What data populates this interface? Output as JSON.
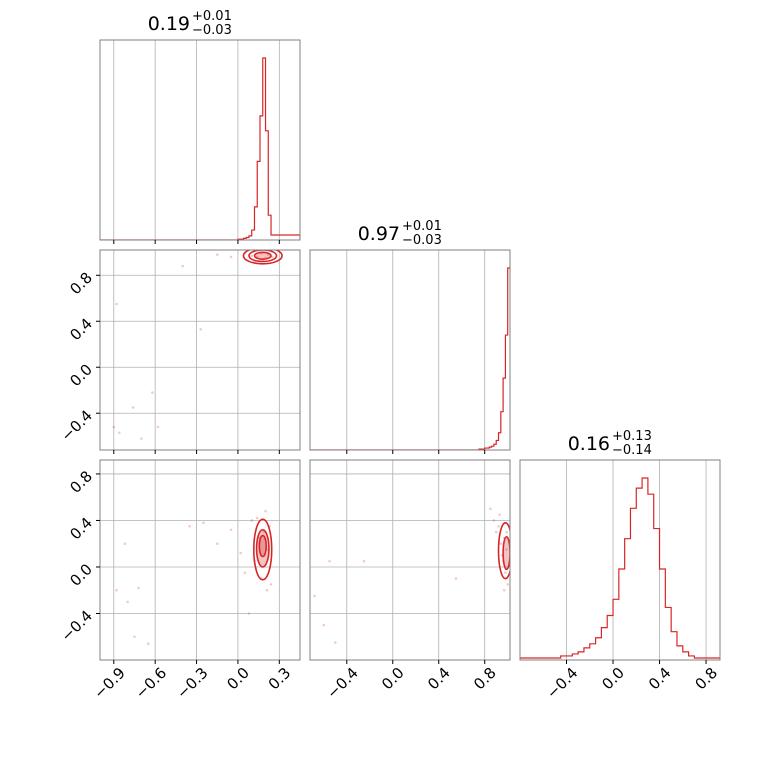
{
  "chart_data": {
    "type": "corner",
    "color": "#d62728",
    "grid": true,
    "parameters": [
      {
        "range": [
          -1.0,
          0.45
        ],
        "ticks": [
          -0.9,
          -0.6,
          -0.3,
          0.0,
          0.3
        ],
        "tick_labels": [
          "−0.9",
          "−0.6",
          "−0.3",
          "0.0",
          "0.3"
        ]
      },
      {
        "range": [
          -0.72,
          1.02
        ],
        "ticks": [
          -0.4,
          0.0,
          0.4,
          0.8
        ],
        "tick_labels": [
          "−0.4",
          "0.0",
          "0.4",
          "0.8"
        ]
      },
      {
        "range": [
          -0.8,
          0.92
        ],
        "ticks": [
          -0.4,
          0.0,
          0.4,
          0.8
        ],
        "tick_labels": [
          "−0.4",
          "0.0",
          "0.4",
          "0.8"
        ]
      }
    ],
    "titles": [
      {
        "median": "0.19",
        "upper": "+0.01",
        "lower": "−0.03"
      },
      {
        "median": "0.97",
        "upper": "+0.01",
        "lower": "−0.03"
      },
      {
        "median": "0.16",
        "upper": "+0.13",
        "lower": "−0.14"
      }
    ],
    "histograms": [
      {
        "x": [
          -1.0,
          0.0,
          0.02,
          0.04,
          0.06,
          0.08,
          0.1,
          0.12,
          0.14,
          0.16,
          0.18,
          0.2,
          0.22,
          0.24,
          0.45
        ],
        "values": [
          0,
          1,
          1,
          2,
          3,
          5,
          12,
          40,
          95,
          150,
          220,
          132,
          30,
          6,
          0
        ]
      },
      {
        "x": [
          -0.72,
          0.75,
          0.78,
          0.8,
          0.82,
          0.84,
          0.86,
          0.88,
          0.9,
          0.92,
          0.94,
          0.96,
          0.98,
          1.0
        ],
        "values": [
          0,
          1,
          1,
          2,
          2,
          3,
          4,
          6,
          10,
          18,
          40,
          75,
          120,
          190
        ]
      },
      {
        "x": [
          -0.8,
          -0.75,
          -0.7,
          -0.65,
          -0.6,
          -0.55,
          -0.5,
          -0.45,
          -0.4,
          -0.35,
          -0.3,
          -0.25,
          -0.2,
          -0.15,
          -0.1,
          -0.05,
          0.0,
          0.05,
          0.1,
          0.15,
          0.2,
          0.25,
          0.3,
          0.35,
          0.4,
          0.45,
          0.5,
          0.55,
          0.6,
          0.65,
          0.7,
          0.75,
          0.8,
          0.85,
          0.92
        ],
        "values": [
          1,
          1,
          1,
          1,
          1,
          1,
          1,
          2,
          2,
          3,
          4,
          6,
          8,
          11,
          16,
          22,
          30,
          45,
          60,
          75,
          85,
          90,
          82,
          65,
          45,
          26,
          14,
          7,
          4,
          2,
          1,
          1,
          1,
          1,
          1
        ]
      }
    ],
    "samples": {
      "p1_vs_p2": [
        {
          "x": -0.88,
          "y": 0.55
        },
        {
          "x": -0.76,
          "y": -0.35
        },
        {
          "x": -0.62,
          "y": -0.22
        },
        {
          "x": -0.9,
          "y": -0.52
        },
        {
          "x": -0.86,
          "y": -0.57
        },
        {
          "x": -0.58,
          "y": -0.52
        },
        {
          "x": -0.7,
          "y": -0.62
        },
        {
          "x": -0.27,
          "y": 0.33
        },
        {
          "x": -0.4,
          "y": 0.88
        },
        {
          "x": -0.05,
          "y": 0.96
        },
        {
          "x": -0.15,
          "y": 0.98
        },
        {
          "x": 0.05,
          "y": 0.99
        },
        {
          "x": 0.1,
          "y": 0.97
        },
        {
          "x": 0.14,
          "y": 0.96
        },
        {
          "x": 0.16,
          "y": 0.94
        },
        {
          "x": 0.18,
          "y": 0.93
        },
        {
          "x": 0.2,
          "y": 0.95
        },
        {
          "x": 0.22,
          "y": 0.98
        },
        {
          "x": 0.17,
          "y": 0.99
        },
        {
          "x": 0.12,
          "y": 0.92
        },
        {
          "x": 0.25,
          "y": 0.96
        }
      ],
      "p1_vs_p3": [
        {
          "x": -0.82,
          "y": 0.2
        },
        {
          "x": -0.88,
          "y": -0.2
        },
        {
          "x": -0.8,
          "y": -0.3
        },
        {
          "x": -0.72,
          "y": -0.18
        },
        {
          "x": -0.75,
          "y": -0.6
        },
        {
          "x": -0.65,
          "y": -0.66
        },
        {
          "x": -0.35,
          "y": 0.35
        },
        {
          "x": -0.25,
          "y": 0.38
        },
        {
          "x": -0.15,
          "y": 0.2
        },
        {
          "x": -0.05,
          "y": 0.32
        },
        {
          "x": 0.02,
          "y": 0.12
        },
        {
          "x": 0.05,
          "y": -0.05
        },
        {
          "x": 0.1,
          "y": 0.4
        },
        {
          "x": 0.12,
          "y": 0.05
        },
        {
          "x": 0.15,
          "y": 0.25
        },
        {
          "x": 0.17,
          "y": -0.1
        },
        {
          "x": 0.19,
          "y": 0.3
        },
        {
          "x": 0.2,
          "y": 0.48
        },
        {
          "x": 0.21,
          "y": -0.2
        },
        {
          "x": 0.22,
          "y": 0.15
        },
        {
          "x": 0.14,
          "y": 0.42
        },
        {
          "x": 0.23,
          "y": 0.35
        },
        {
          "x": 0.24,
          "y": -0.15
        },
        {
          "x": 0.08,
          "y": -0.4
        }
      ],
      "p2_vs_p3": [
        {
          "x": -0.68,
          "y": -0.25
        },
        {
          "x": -0.6,
          "y": -0.5
        },
        {
          "x": -0.5,
          "y": -0.65
        },
        {
          "x": -0.55,
          "y": 0.05
        },
        {
          "x": -0.25,
          "y": 0.05
        },
        {
          "x": 0.55,
          "y": -0.1
        },
        {
          "x": 0.85,
          "y": 0.5
        },
        {
          "x": 0.88,
          "y": 0.4
        },
        {
          "x": 0.9,
          "y": 0.3
        },
        {
          "x": 0.92,
          "y": 0.35
        },
        {
          "x": 0.94,
          "y": 0.2
        },
        {
          "x": 0.95,
          "y": 0.1
        },
        {
          "x": 0.96,
          "y": 0.05
        },
        {
          "x": 0.97,
          "y": 0.25
        },
        {
          "x": 0.98,
          "y": -0.05
        },
        {
          "x": 0.99,
          "y": 0.15
        },
        {
          "x": 1.0,
          "y": -0.15
        },
        {
          "x": 0.93,
          "y": 0.45
        },
        {
          "x": 0.97,
          "y": -0.2
        },
        {
          "x": 0.99,
          "y": 0.3
        }
      ]
    },
    "contours": {
      "p1_vs_p2": [
        {
          "cx": 0.18,
          "cy": 0.97,
          "rx": 0.06,
          "ry": 0.03,
          "fill": true
        },
        {
          "cx": 0.18,
          "cy": 0.97,
          "rx": 0.1,
          "ry": 0.05,
          "fill": false
        },
        {
          "cx": 0.18,
          "cy": 0.97,
          "rx": 0.14,
          "ry": 0.07,
          "fill": false
        }
      ],
      "p1_vs_p3": [
        {
          "cx": 0.18,
          "cy": 0.18,
          "rx": 0.025,
          "ry": 0.09,
          "fill": true
        },
        {
          "cx": 0.18,
          "cy": 0.16,
          "rx": 0.045,
          "ry": 0.16,
          "fill": true
        },
        {
          "cx": 0.18,
          "cy": 0.15,
          "rx": 0.065,
          "ry": 0.26,
          "fill": false
        }
      ],
      "p2_vs_p3": [
        {
          "cx": 0.99,
          "cy": 0.12,
          "rx": 0.03,
          "ry": 0.14,
          "fill": true
        },
        {
          "cx": 0.98,
          "cy": 0.14,
          "rx": 0.06,
          "ry": 0.24,
          "fill": false
        }
      ]
    }
  }
}
